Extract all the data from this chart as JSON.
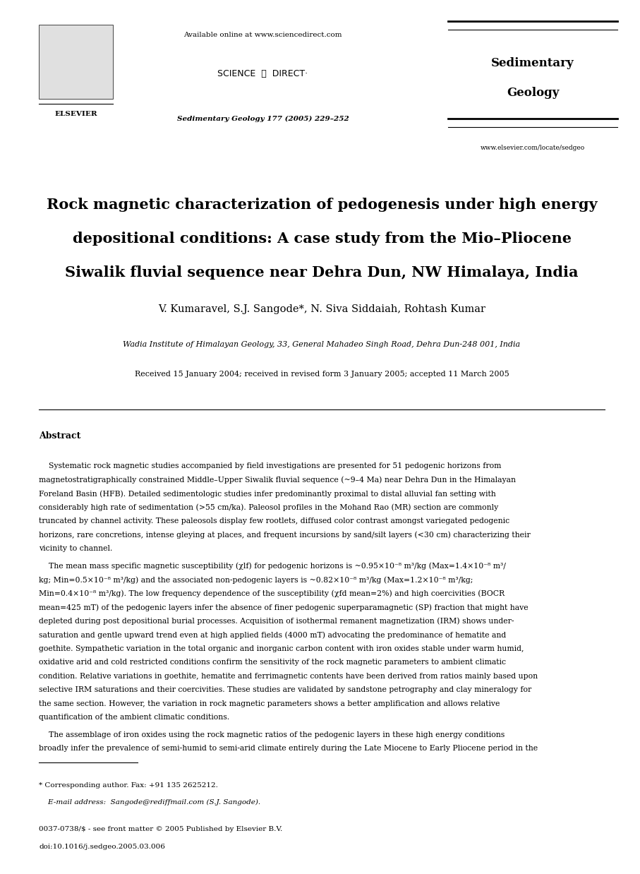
{
  "bg_color": "#ffffff",
  "page_width": 9.07,
  "page_height": 12.38,
  "top_bar_text": "Available online at www.sciencedirect.com",
  "journal_name_line1": "Sedimentary",
  "journal_name_line2": "Geology",
  "journal_ref": "Sedimentary Geology 177 (2005) 229–252",
  "journal_url": "www.elsevier.com/locate/sedgeo",
  "article_title_line1": "Rock magnetic characterization of pedogenesis under high energy",
  "article_title_line2": "depositional conditions: A case study from the Mio–Pliocene",
  "article_title_line3": "Siwalik fluvial sequence near Dehra Dun, NW Himalaya, India",
  "authors": "V. Kumaravel, S.J. Sangode*, N. Siva Siddaiah, Rohtash Kumar",
  "affiliation": "Wadia Institute of Himalayan Geology, 33, General Mahadeo Singh Road, Dehra Dun-248 001, India",
  "received": "Received 15 January 2004; received in revised form 3 January 2005; accepted 11 March 2005",
  "abstract_label": "Abstract",
  "para1_lines": [
    "    Systematic rock magnetic studies accompanied by field investigations are presented for 51 pedogenic horizons from",
    "magnetostratigraphically constrained Middle–Upper Siwalik fluvial sequence (~9–4 Ma) near Dehra Dun in the Himalayan",
    "Foreland Basin (HFB). Detailed sedimentologic studies infer predominantly proximal to distal alluvial fan setting with",
    "considerably high rate of sedimentation (>55 cm/ka). Paleosol profiles in the Mohand Rao (MR) section are commonly",
    "truncated by channel activity. These paleosols display few rootlets, diffused color contrast amongst variegated pedogenic",
    "horizons, rare concretions, intense gleying at places, and frequent incursions by sand/silt layers (<30 cm) characterizing their",
    "vicinity to channel."
  ],
  "para2_lines": [
    "    The mean mass specific magnetic susceptibility (χlf) for pedogenic horizons is ~0.95×10⁻⁸ m³/kg (Max=1.4×10⁻⁸ m³/",
    "kg; Min=0.5×10⁻⁸ m³/kg) and the associated non-pedogenic layers is ~0.82×10⁻⁸ m³/kg (Max=1.2×10⁻⁸ m³/kg;",
    "Min=0.4×10⁻⁸ m³/kg). The low frequency dependence of the susceptibility (χfd mean=2%) and high coercivities (BOCR",
    "mean=425 mT) of the pedogenic layers infer the absence of finer pedogenic superparamagnetic (SP) fraction that might have",
    "depleted during post depositional burial processes. Acquisition of isothermal remanent magnetization (IRM) shows under-",
    "saturation and gentle upward trend even at high applied fields (4000 mT) advocating the predominance of hematite and",
    "goethite. Sympathetic variation in the total organic and inorganic carbon content with iron oxides stable under warm humid,",
    "oxidative arid and cold restricted conditions confirm the sensitivity of the rock magnetic parameters to ambient climatic",
    "condition. Relative variations in goethite, hematite and ferrimagnetic contents have been derived from ratios mainly based upon",
    "selective IRM saturations and their coercivities. These studies are validated by sandstone petrography and clay mineralogy for",
    "the same section. However, the variation in rock magnetic parameters shows a better amplification and allows relative",
    "quantification of the ambient climatic conditions."
  ],
  "para3_lines": [
    "    The assemblage of iron oxides using the rock magnetic ratios of the pedogenic layers in these high energy conditions",
    "broadly infer the prevalence of semi-humid to semi-arid climate entirely during the Late Miocene to Early Pliocene period in the"
  ],
  "footnote_star": "* Corresponding author. Fax: +91 135 2625212.",
  "footnote_email": "    E-mail address:  Sangode@rediffmail.com (S.J. Sangode).",
  "footer_issn": "0037-0738/$ - see front matter © 2005 Published by Elsevier B.V.",
  "footer_doi": "doi:10.1016/j.sedgeo.2005.03.006"
}
